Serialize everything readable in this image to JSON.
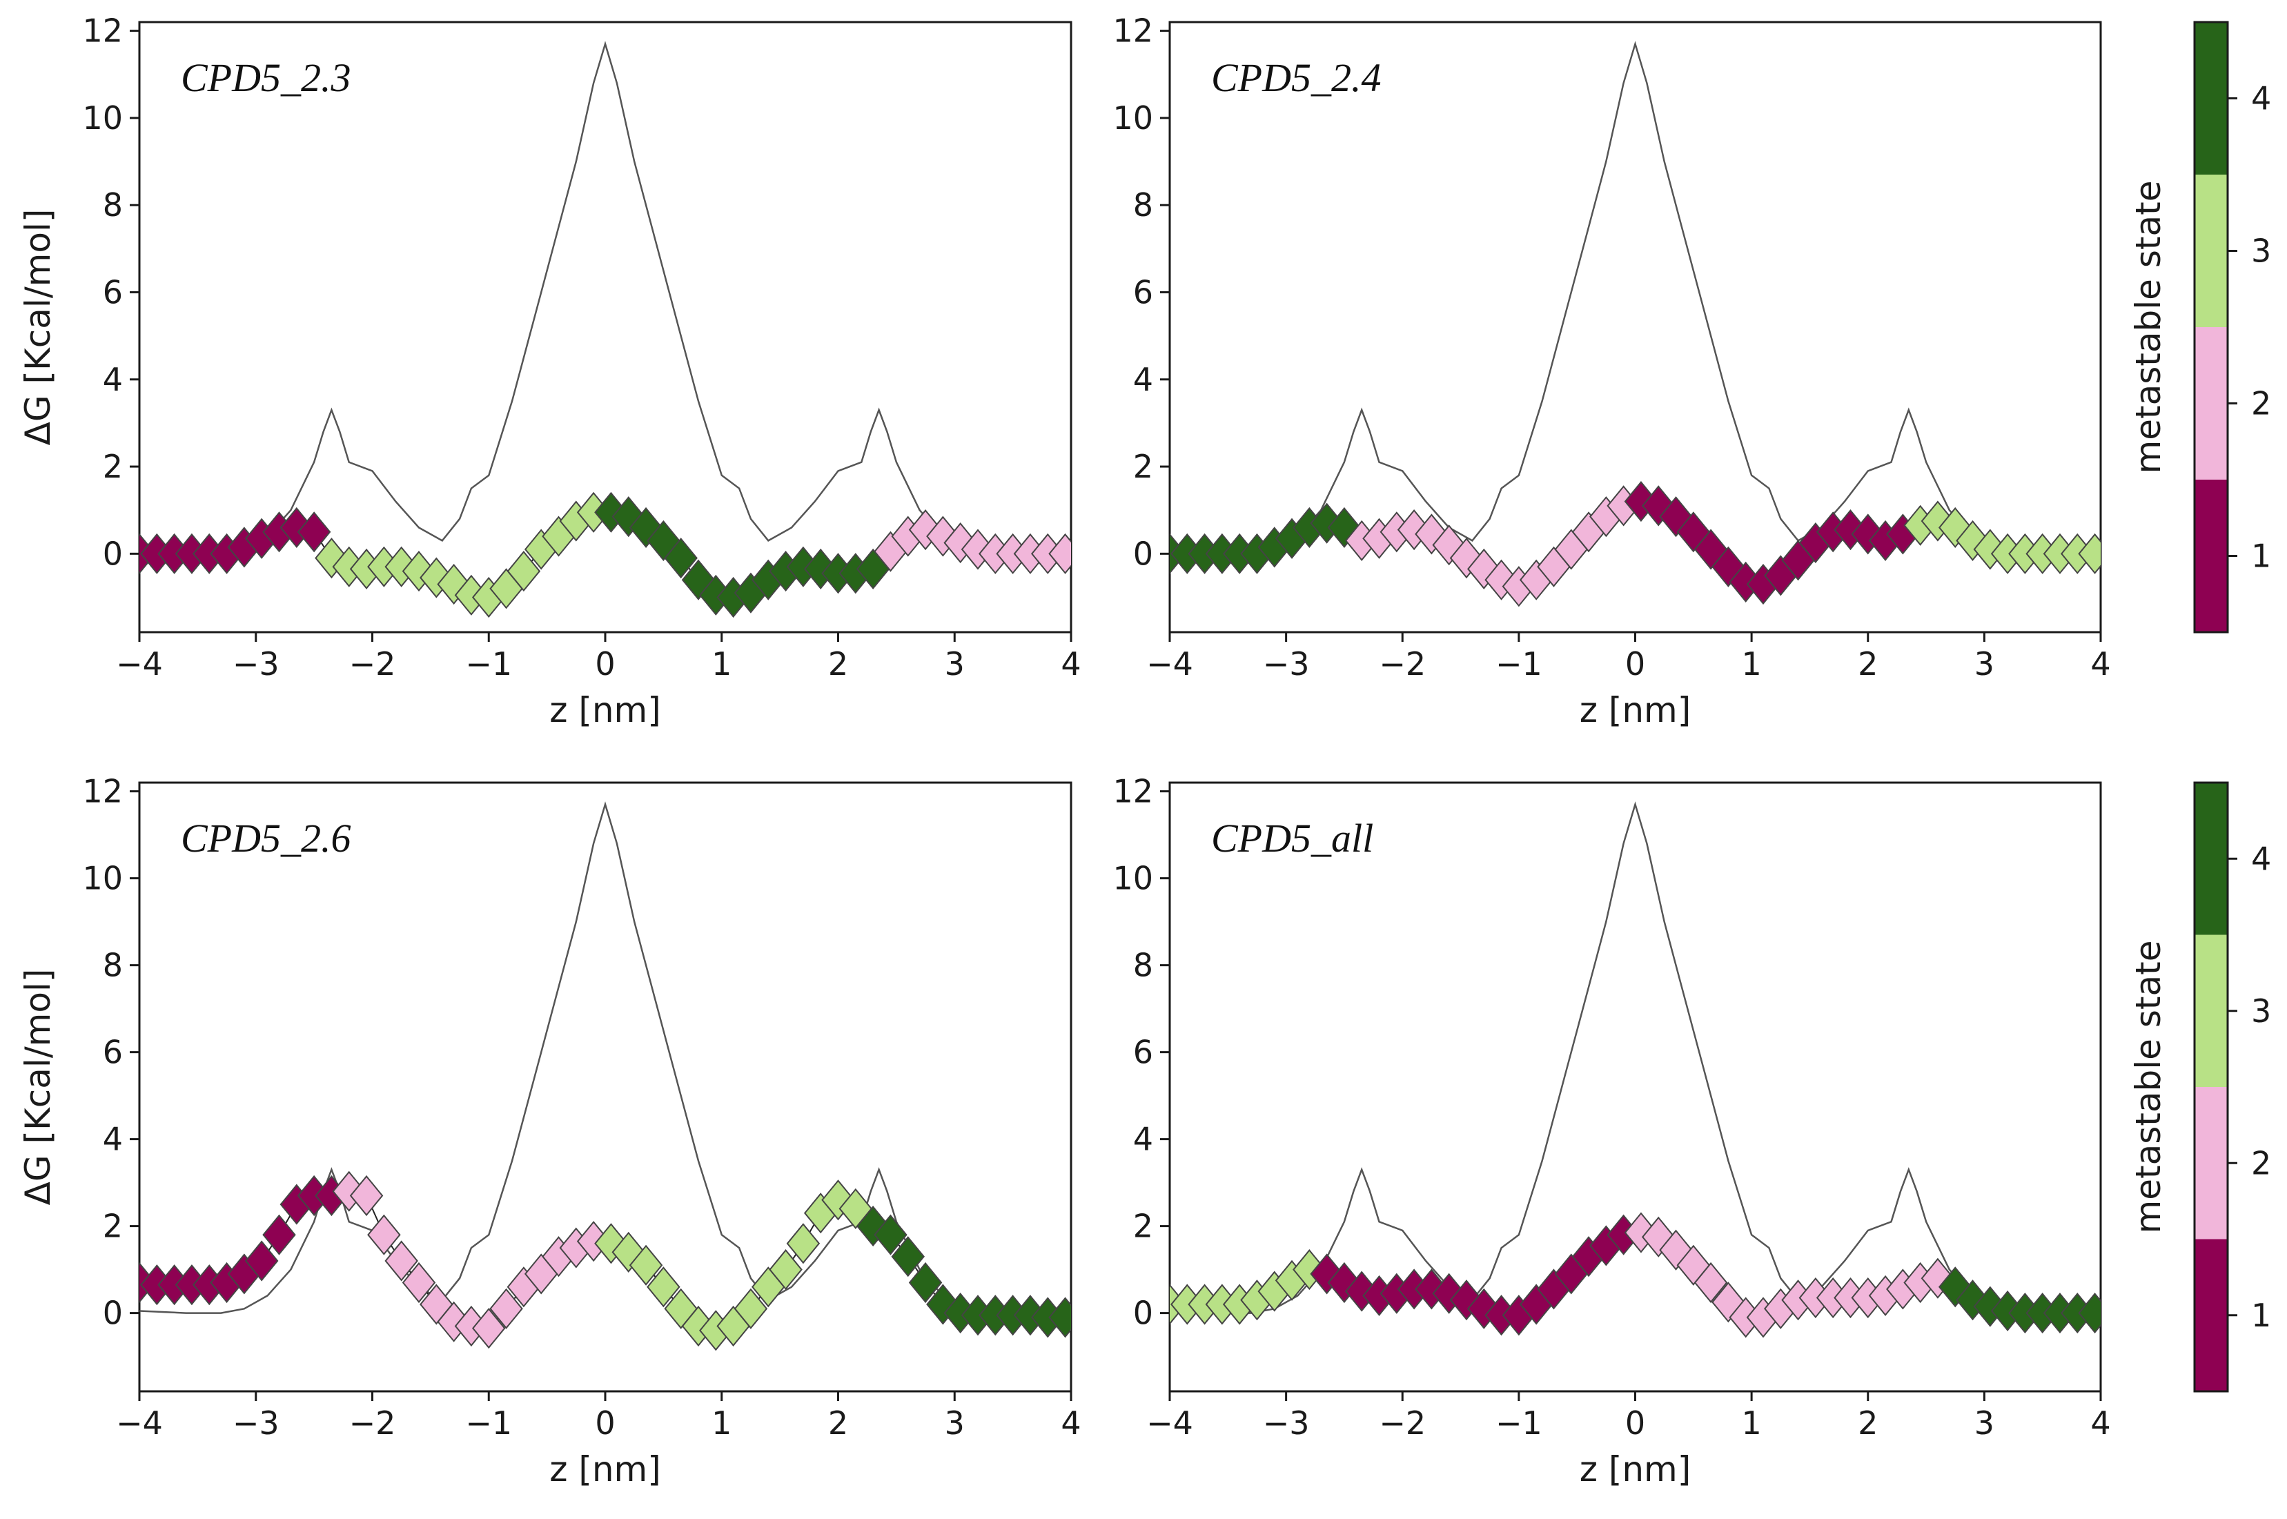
{
  "chart_data": [
    {
      "type": "line",
      "title": "CPD5_2.3",
      "xlabel": "z [nm]",
      "ylabel": "ΔG [Kcal/mol]",
      "xlim": [
        -4,
        4
      ],
      "ylim": [
        -1.8,
        12.2
      ],
      "xticks": [
        "−4",
        "−3",
        "−2",
        "−1",
        "0",
        "1",
        "2",
        "3",
        "4"
      ],
      "yticks": [
        "0",
        "2",
        "4",
        "6",
        "8",
        "10",
        "12"
      ],
      "reference_curve": {
        "x": [
          -4,
          -3.6,
          -3.3,
          -3.1,
          -2.9,
          -2.7,
          -2.5,
          -2.42,
          -2.35,
          -2.28,
          -2.2,
          -2.0,
          -1.8,
          -1.6,
          -1.4,
          -1.25,
          -1.15,
          -1.0,
          -0.8,
          -0.6,
          -0.4,
          -0.25,
          -0.1,
          0,
          0.1,
          0.25,
          0.4,
          0.6,
          0.8,
          1.0,
          1.15,
          1.25,
          1.4,
          1.6,
          1.8,
          2.0,
          2.2,
          2.28,
          2.35,
          2.42,
          2.5,
          2.7,
          2.9,
          3.1,
          3.3,
          3.6,
          4
        ],
        "y": [
          0.05,
          0.0,
          0.0,
          0.1,
          0.4,
          1.0,
          2.1,
          2.8,
          3.3,
          2.8,
          2.1,
          1.9,
          1.2,
          0.6,
          0.3,
          0.8,
          1.5,
          1.8,
          3.5,
          5.5,
          7.5,
          9.0,
          10.8,
          11.7,
          10.8,
          9.0,
          7.5,
          5.5,
          3.5,
          1.8,
          1.5,
          0.8,
          0.3,
          0.6,
          1.2,
          1.9,
          2.1,
          2.8,
          3.3,
          2.8,
          2.1,
          1.0,
          0.4,
          0.1,
          0.0,
          0.0,
          0.05
        ]
      },
      "series": [
        {
          "x": [
            -4,
            -3.85,
            -3.7,
            -3.55,
            -3.4,
            -3.25,
            -3.1,
            -2.95,
            -2.8,
            -2.65,
            -2.5,
            -2.35,
            -2.2,
            -2.05,
            -1.9,
            -1.75,
            -1.6,
            -1.45,
            -1.3,
            -1.15,
            -1.0,
            -0.85,
            -0.7,
            -0.55,
            -0.4,
            -0.25,
            -0.1,
            0.05,
            0.2,
            0.35,
            0.5,
            0.65,
            0.8,
            0.95,
            1.1,
            1.25,
            1.4,
            1.55,
            1.7,
            1.85,
            2.0,
            2.15,
            2.3,
            2.45,
            2.6,
            2.75,
            2.9,
            3.05,
            3.2,
            3.35,
            3.5,
            3.65,
            3.8,
            3.95
          ],
          "y": [
            0.0,
            0.0,
            0.0,
            0.0,
            0.0,
            0.0,
            0.15,
            0.35,
            0.5,
            0.6,
            0.5,
            -0.1,
            -0.3,
            -0.35,
            -0.3,
            -0.3,
            -0.4,
            -0.55,
            -0.7,
            -0.95,
            -1.0,
            -0.8,
            -0.4,
            0.1,
            0.4,
            0.75,
            0.95,
            0.95,
            0.85,
            0.6,
            0.3,
            -0.1,
            -0.6,
            -0.95,
            -1.0,
            -0.9,
            -0.6,
            -0.4,
            -0.3,
            -0.35,
            -0.45,
            -0.45,
            -0.35,
            0.05,
            0.4,
            0.55,
            0.4,
            0.25,
            0.1,
            0.0,
            0.0,
            0.0,
            0.0,
            0.0
          ],
          "state": [
            1,
            1,
            1,
            1,
            1,
            1,
            1,
            1,
            1,
            1,
            1,
            3,
            3,
            3,
            3,
            3,
            3,
            3,
            3,
            3,
            3,
            3,
            3,
            3,
            3,
            3,
            3,
            4,
            4,
            4,
            4,
            4,
            4,
            4,
            4,
            4,
            4,
            4,
            4,
            4,
            4,
            4,
            4,
            2,
            2,
            2,
            2,
            2,
            2,
            2,
            2,
            2,
            2,
            2
          ]
        }
      ]
    },
    {
      "type": "line",
      "title": "CPD5_2.4",
      "xlabel": "z [nm]",
      "ylabel": "",
      "xlim": [
        -4,
        4
      ],
      "ylim": [
        -1.8,
        12.2
      ],
      "xticks": [
        "−4",
        "−3",
        "−2",
        "−1",
        "0",
        "1",
        "2",
        "3",
        "4"
      ],
      "yticks": [
        "0",
        "2",
        "4",
        "6",
        "8",
        "10",
        "12"
      ],
      "reference_curve": {
        "x": [
          -4,
          -3.6,
          -3.3,
          -3.1,
          -2.9,
          -2.7,
          -2.5,
          -2.42,
          -2.35,
          -2.28,
          -2.2,
          -2.0,
          -1.8,
          -1.6,
          -1.4,
          -1.25,
          -1.15,
          -1.0,
          -0.8,
          -0.6,
          -0.4,
          -0.25,
          -0.1,
          0,
          0.1,
          0.25,
          0.4,
          0.6,
          0.8,
          1.0,
          1.15,
          1.25,
          1.4,
          1.6,
          1.8,
          2.0,
          2.2,
          2.28,
          2.35,
          2.42,
          2.5,
          2.7,
          2.9,
          3.1,
          3.3,
          3.6,
          4
        ],
        "y": [
          0.05,
          0.0,
          0.0,
          0.1,
          0.4,
          1.0,
          2.1,
          2.8,
          3.3,
          2.8,
          2.1,
          1.9,
          1.2,
          0.6,
          0.3,
          0.8,
          1.5,
          1.8,
          3.5,
          5.5,
          7.5,
          9.0,
          10.8,
          11.7,
          10.8,
          9.0,
          7.5,
          5.5,
          3.5,
          1.8,
          1.5,
          0.8,
          0.3,
          0.6,
          1.2,
          1.9,
          2.1,
          2.8,
          3.3,
          2.8,
          2.1,
          1.0,
          0.4,
          0.1,
          0.0,
          0.0,
          0.05
        ]
      },
      "series": [
        {
          "x": [
            -4,
            -3.85,
            -3.7,
            -3.55,
            -3.4,
            -3.25,
            -3.1,
            -2.95,
            -2.8,
            -2.65,
            -2.5,
            -2.35,
            -2.2,
            -2.05,
            -1.9,
            -1.75,
            -1.6,
            -1.45,
            -1.3,
            -1.15,
            -1.0,
            -0.85,
            -0.7,
            -0.55,
            -0.4,
            -0.25,
            -0.1,
            0.05,
            0.2,
            0.35,
            0.5,
            0.65,
            0.8,
            0.95,
            1.1,
            1.25,
            1.4,
            1.55,
            1.7,
            1.85,
            2.0,
            2.15,
            2.3,
            2.45,
            2.6,
            2.75,
            2.9,
            3.05,
            3.2,
            3.35,
            3.5,
            3.65,
            3.8,
            3.95
          ],
          "y": [
            0.0,
            0.0,
            0.0,
            0.0,
            0.0,
            0.0,
            0.15,
            0.35,
            0.6,
            0.7,
            0.6,
            0.3,
            0.35,
            0.5,
            0.55,
            0.45,
            0.2,
            -0.1,
            -0.35,
            -0.6,
            -0.75,
            -0.6,
            -0.3,
            0.1,
            0.5,
            0.85,
            1.1,
            1.2,
            1.1,
            0.85,
            0.5,
            0.1,
            -0.3,
            -0.65,
            -0.7,
            -0.5,
            -0.15,
            0.25,
            0.5,
            0.55,
            0.45,
            0.3,
            0.45,
            0.65,
            0.75,
            0.6,
            0.3,
            0.1,
            0.0,
            0.0,
            0.0,
            0.0,
            0.0,
            0.0
          ],
          "state": [
            4,
            4,
            4,
            4,
            4,
            4,
            4,
            4,
            4,
            4,
            4,
            2,
            2,
            2,
            2,
            2,
            2,
            2,
            2,
            2,
            2,
            2,
            2,
            2,
            2,
            2,
            2,
            1,
            1,
            1,
            1,
            1,
            1,
            1,
            1,
            1,
            1,
            1,
            1,
            1,
            1,
            1,
            1,
            3,
            3,
            3,
            3,
            3,
            3,
            3,
            3,
            3,
            3,
            3
          ]
        }
      ]
    },
    {
      "type": "line",
      "title": "CPD5_2.6",
      "xlabel": "z [nm]",
      "ylabel": "ΔG [Kcal/mol]",
      "xlim": [
        -4,
        4
      ],
      "ylim": [
        -1.8,
        12.2
      ],
      "xticks": [
        "−4",
        "−3",
        "−2",
        "−1",
        "0",
        "1",
        "2",
        "3",
        "4"
      ],
      "yticks": [
        "0",
        "2",
        "4",
        "6",
        "8",
        "10",
        "12"
      ],
      "reference_curve": {
        "x": [
          -4,
          -3.6,
          -3.3,
          -3.1,
          -2.9,
          -2.7,
          -2.5,
          -2.42,
          -2.35,
          -2.28,
          -2.2,
          -2.0,
          -1.8,
          -1.6,
          -1.4,
          -1.25,
          -1.15,
          -1.0,
          -0.8,
          -0.6,
          -0.4,
          -0.25,
          -0.1,
          0,
          0.1,
          0.25,
          0.4,
          0.6,
          0.8,
          1.0,
          1.15,
          1.25,
          1.4,
          1.6,
          1.8,
          2.0,
          2.2,
          2.28,
          2.35,
          2.42,
          2.5,
          2.7,
          2.9,
          3.1,
          3.3,
          3.6,
          4
        ],
        "y": [
          0.05,
          0.0,
          0.0,
          0.1,
          0.4,
          1.0,
          2.1,
          2.8,
          3.3,
          2.8,
          2.1,
          1.9,
          1.2,
          0.6,
          0.3,
          0.8,
          1.5,
          1.8,
          3.5,
          5.5,
          7.5,
          9.0,
          10.8,
          11.7,
          10.8,
          9.0,
          7.5,
          5.5,
          3.5,
          1.8,
          1.5,
          0.8,
          0.3,
          0.6,
          1.2,
          1.9,
          2.1,
          2.8,
          3.3,
          2.8,
          2.1,
          1.0,
          0.4,
          0.1,
          0.0,
          0.0,
          0.05
        ]
      },
      "series": [
        {
          "x": [
            -4,
            -3.85,
            -3.7,
            -3.55,
            -3.4,
            -3.25,
            -3.1,
            -2.95,
            -2.8,
            -2.65,
            -2.5,
            -2.35,
            -2.2,
            -2.05,
            -1.9,
            -1.75,
            -1.6,
            -1.45,
            -1.3,
            -1.15,
            -1.0,
            -0.85,
            -0.7,
            -0.55,
            -0.4,
            -0.25,
            -0.1,
            0.05,
            0.2,
            0.35,
            0.5,
            0.65,
            0.8,
            0.95,
            1.1,
            1.25,
            1.4,
            1.55,
            1.7,
            1.85,
            2.0,
            2.15,
            2.3,
            2.45,
            2.6,
            2.75,
            2.9,
            3.05,
            3.2,
            3.35,
            3.5,
            3.65,
            3.8,
            3.95
          ],
          "y": [
            0.7,
            0.65,
            0.65,
            0.65,
            0.65,
            0.7,
            0.9,
            1.2,
            1.8,
            2.5,
            2.7,
            2.7,
            2.8,
            2.7,
            1.8,
            1.2,
            0.7,
            0.2,
            -0.2,
            -0.3,
            -0.35,
            0.1,
            0.6,
            0.9,
            1.3,
            1.5,
            1.65,
            1.6,
            1.4,
            1.1,
            0.6,
            0.1,
            -0.3,
            -0.4,
            -0.3,
            0.1,
            0.6,
            1.0,
            1.6,
            2.3,
            2.6,
            2.4,
            2.0,
            1.8,
            1.3,
            0.7,
            0.2,
            0.0,
            -0.05,
            -0.05,
            -0.05,
            -0.05,
            -0.1,
            -0.1
          ],
          "state": [
            1,
            1,
            1,
            1,
            1,
            1,
            1,
            1,
            1,
            1,
            1,
            1,
            2,
            2,
            2,
            2,
            2,
            2,
            2,
            2,
            2,
            2,
            2,
            2,
            2,
            2,
            2,
            3,
            3,
            3,
            3,
            3,
            3,
            3,
            3,
            3,
            3,
            3,
            3,
            3,
            3,
            3,
            4,
            4,
            4,
            4,
            4,
            4,
            4,
            4,
            4,
            4,
            4,
            4
          ]
        }
      ]
    },
    {
      "type": "line",
      "title": "CPD5_all",
      "xlabel": "z [nm]",
      "ylabel": "",
      "xlim": [
        -4,
        4
      ],
      "ylim": [
        -1.8,
        12.2
      ],
      "xticks": [
        "−4",
        "−3",
        "−2",
        "−1",
        "0",
        "1",
        "2",
        "3",
        "4"
      ],
      "yticks": [
        "0",
        "2",
        "4",
        "6",
        "8",
        "10",
        "12"
      ],
      "reference_curve": {
        "x": [
          -4,
          -3.6,
          -3.3,
          -3.1,
          -2.9,
          -2.7,
          -2.5,
          -2.42,
          -2.35,
          -2.28,
          -2.2,
          -2.0,
          -1.8,
          -1.6,
          -1.4,
          -1.25,
          -1.15,
          -1.0,
          -0.8,
          -0.6,
          -0.4,
          -0.25,
          -0.1,
          0,
          0.1,
          0.25,
          0.4,
          0.6,
          0.8,
          1.0,
          1.15,
          1.25,
          1.4,
          1.6,
          1.8,
          2.0,
          2.2,
          2.28,
          2.35,
          2.42,
          2.5,
          2.7,
          2.9,
          3.1,
          3.3,
          3.6,
          4
        ],
        "y": [
          0.05,
          0.0,
          0.0,
          0.1,
          0.4,
          1.0,
          2.1,
          2.8,
          3.3,
          2.8,
          2.1,
          1.9,
          1.2,
          0.6,
          0.3,
          0.8,
          1.5,
          1.8,
          3.5,
          5.5,
          7.5,
          9.0,
          10.8,
          11.7,
          10.8,
          9.0,
          7.5,
          5.5,
          3.5,
          1.8,
          1.5,
          0.8,
          0.3,
          0.6,
          1.2,
          1.9,
          2.1,
          2.8,
          3.3,
          2.8,
          2.1,
          1.0,
          0.4,
          0.1,
          0.0,
          0.0,
          0.05
        ]
      },
      "series": [
        {
          "x": [
            -4,
            -3.85,
            -3.7,
            -3.55,
            -3.4,
            -3.25,
            -3.1,
            -2.95,
            -2.8,
            -2.65,
            -2.5,
            -2.35,
            -2.2,
            -2.05,
            -1.9,
            -1.75,
            -1.6,
            -1.45,
            -1.3,
            -1.15,
            -1.0,
            -0.85,
            -0.7,
            -0.55,
            -0.4,
            -0.25,
            -0.1,
            0.05,
            0.2,
            0.35,
            0.5,
            0.65,
            0.8,
            0.95,
            1.1,
            1.25,
            1.4,
            1.55,
            1.7,
            1.85,
            2.0,
            2.15,
            2.3,
            2.45,
            2.6,
            2.75,
            2.9,
            3.05,
            3.2,
            3.35,
            3.5,
            3.65,
            3.8,
            3.95
          ],
          "y": [
            0.2,
            0.2,
            0.2,
            0.2,
            0.2,
            0.3,
            0.5,
            0.75,
            1.0,
            0.9,
            0.7,
            0.5,
            0.4,
            0.45,
            0.55,
            0.55,
            0.45,
            0.3,
            0.1,
            -0.05,
            -0.05,
            0.2,
            0.55,
            0.9,
            1.3,
            1.55,
            1.8,
            1.85,
            1.75,
            1.45,
            1.1,
            0.7,
            0.25,
            -0.1,
            -0.1,
            0.1,
            0.3,
            0.35,
            0.35,
            0.35,
            0.35,
            0.4,
            0.55,
            0.7,
            0.8,
            0.6,
            0.3,
            0.15,
            0.05,
            0.0,
            0.0,
            0.0,
            0.0,
            0.0
          ],
          "state": [
            3,
            3,
            3,
            3,
            3,
            3,
            3,
            3,
            3,
            1,
            1,
            1,
            1,
            1,
            1,
            1,
            1,
            1,
            1,
            1,
            1,
            1,
            1,
            1,
            1,
            1,
            1,
            2,
            2,
            2,
            2,
            2,
            2,
            2,
            2,
            2,
            2,
            2,
            2,
            2,
            2,
            2,
            2,
            2,
            2,
            4,
            4,
            4,
            4,
            4,
            4,
            4,
            4,
            4
          ]
        }
      ]
    }
  ],
  "colorbar": {
    "label": "metastable state",
    "ticks": [
      "1",
      "2",
      "3",
      "4"
    ],
    "colors": [
      "#8e0152",
      "#f1b6da",
      "#b8e186",
      "#276419"
    ]
  },
  "colors": {
    "reference_line": "#555555",
    "marker_edge": "#444444"
  }
}
